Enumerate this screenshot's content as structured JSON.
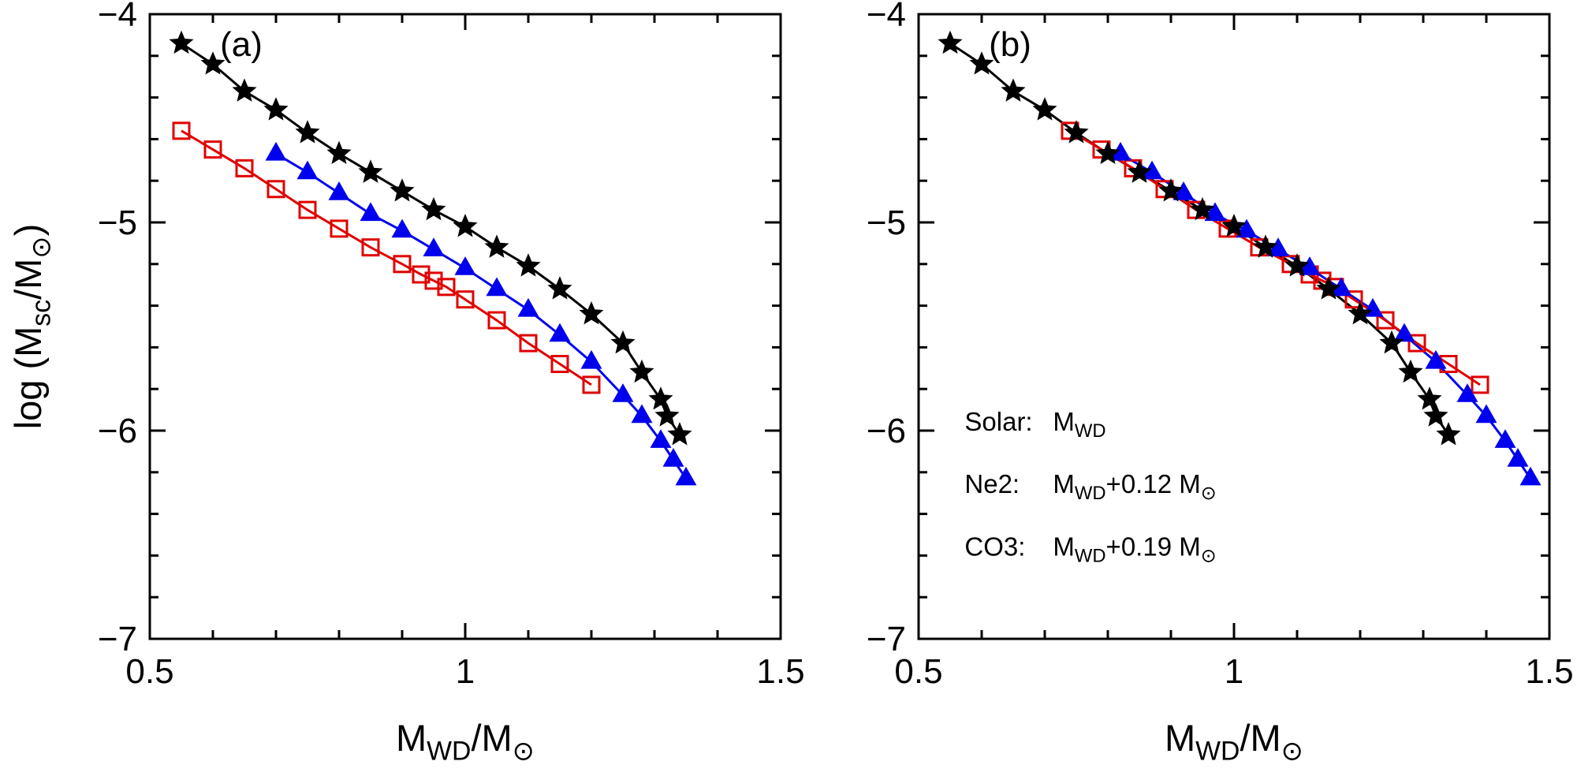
{
  "figure": {
    "background": "#ffffff",
    "panel_labels": [
      "(a)",
      "(b)"
    ]
  },
  "chart_data": [
    {
      "type": "line",
      "panel_label": "(a)",
      "xlim": [
        0.5,
        1.5
      ],
      "ylim": [
        -7,
        -4
      ],
      "grid": false,
      "x_ticks": {
        "major": [
          0.5,
          1,
          1.5
        ],
        "labels": [
          "0.5",
          "1",
          "1.5"
        ],
        "minor_step": 0.1
      },
      "y_ticks": {
        "major": [
          -4,
          -5,
          -6,
          -7
        ],
        "labels": [
          "−4",
          "−5",
          "−6",
          "−7"
        ],
        "minor_step": 0.2
      },
      "xlabel_segments": [
        {
          "t": "M"
        },
        {
          "t": "WD",
          "sub": true
        },
        {
          "t": "/M"
        },
        {
          "t": "⊙",
          "sub": true
        }
      ],
      "ylabel_segments": [
        {
          "t": "log (M"
        },
        {
          "t": "sc",
          "sub": true
        },
        {
          "t": "/M"
        },
        {
          "t": "⊙",
          "sub": true
        },
        {
          "t": ")"
        }
      ],
      "series": [
        {
          "name": "Solar",
          "marker": "star",
          "color": "#000000",
          "x": [
            0.55,
            0.6,
            0.65,
            0.7,
            0.75,
            0.8,
            0.85,
            0.9,
            0.95,
            1.0,
            1.05,
            1.1,
            1.15,
            1.2,
            1.25,
            1.28,
            1.31,
            1.32,
            1.34
          ],
          "y": [
            -4.14,
            -4.24,
            -4.37,
            -4.46,
            -4.57,
            -4.67,
            -4.76,
            -4.85,
            -4.94,
            -5.02,
            -5.12,
            -5.21,
            -5.32,
            -5.44,
            -5.58,
            -5.72,
            -5.85,
            -5.93,
            -6.02
          ]
        },
        {
          "name": "Ne2",
          "marker": "triangle",
          "color": "#0000ee",
          "x": [
            0.7,
            0.75,
            0.8,
            0.85,
            0.9,
            0.95,
            1.0,
            1.05,
            1.1,
            1.15,
            1.2,
            1.25,
            1.28,
            1.31,
            1.33,
            1.35
          ],
          "y": [
            -4.67,
            -4.76,
            -4.86,
            -4.96,
            -5.04,
            -5.13,
            -5.22,
            -5.32,
            -5.42,
            -5.54,
            -5.67,
            -5.83,
            -5.93,
            -6.05,
            -6.14,
            -6.23
          ]
        },
        {
          "name": "CO3",
          "marker": "square-open",
          "color": "#e00000",
          "x": [
            0.55,
            0.6,
            0.65,
            0.7,
            0.75,
            0.8,
            0.85,
            0.9,
            0.93,
            0.95,
            0.97,
            1.0,
            1.05,
            1.1,
            1.15,
            1.2
          ],
          "y": [
            -4.56,
            -4.65,
            -4.74,
            -4.84,
            -4.94,
            -5.03,
            -5.12,
            -5.2,
            -5.25,
            -5.28,
            -5.31,
            -5.37,
            -5.47,
            -5.58,
            -5.68,
            -5.78
          ]
        }
      ]
    },
    {
      "type": "line",
      "panel_label": "(b)",
      "xlim": [
        0.5,
        1.5
      ],
      "ylim": [
        -7,
        -4
      ],
      "grid": false,
      "x_ticks": {
        "major": [
          0.5,
          1,
          1.5
        ],
        "labels": [
          "0.5",
          "1",
          "1.5"
        ],
        "minor_step": 0.1
      },
      "y_ticks": {
        "major": [
          -4,
          -5,
          -6,
          -7
        ],
        "labels": [
          "−4",
          "−5",
          "−6",
          "−7"
        ],
        "minor_step": 0.2
      },
      "xlabel_segments": [
        {
          "t": "M"
        },
        {
          "t": "WD",
          "sub": true
        },
        {
          "t": "/M"
        },
        {
          "t": "⊙",
          "sub": true
        }
      ],
      "legend": {
        "entries": [
          {
            "label": "Solar:",
            "value_segments": [
              {
                "t": "M"
              },
              {
                "t": "WD",
                "sub": true
              }
            ]
          },
          {
            "label": "Ne2:",
            "value_segments": [
              {
                "t": "M"
              },
              {
                "t": "WD",
                "sub": true
              },
              {
                "t": "+0.12 M"
              },
              {
                "t": "⊙",
                "sub": true
              }
            ]
          },
          {
            "label": "CO3:",
            "value_segments": [
              {
                "t": "M"
              },
              {
                "t": "WD",
                "sub": true
              },
              {
                "t": "+0.19 M"
              },
              {
                "t": "⊙",
                "sub": true
              }
            ]
          }
        ]
      },
      "series": [
        {
          "name": "Solar",
          "marker": "star",
          "color": "#000000",
          "x": [
            0.55,
            0.6,
            0.65,
            0.7,
            0.75,
            0.8,
            0.85,
            0.9,
            0.95,
            1.0,
            1.05,
            1.1,
            1.15,
            1.2,
            1.25,
            1.28,
            1.31,
            1.32,
            1.34
          ],
          "y": [
            -4.14,
            -4.24,
            -4.37,
            -4.46,
            -4.57,
            -4.67,
            -4.76,
            -4.85,
            -4.94,
            -5.02,
            -5.12,
            -5.21,
            -5.32,
            -5.44,
            -5.58,
            -5.72,
            -5.85,
            -5.93,
            -6.02
          ]
        },
        {
          "name": "Ne2",
          "marker": "triangle",
          "color": "#0000ee",
          "x": [
            0.82,
            0.87,
            0.92,
            0.97,
            1.02,
            1.07,
            1.12,
            1.17,
            1.22,
            1.27,
            1.32,
            1.37,
            1.4,
            1.43,
            1.45,
            1.47
          ],
          "y": [
            -4.67,
            -4.76,
            -4.86,
            -4.96,
            -5.04,
            -5.13,
            -5.22,
            -5.32,
            -5.42,
            -5.54,
            -5.67,
            -5.83,
            -5.93,
            -6.05,
            -6.14,
            -6.23
          ]
        },
        {
          "name": "CO3",
          "marker": "square-open",
          "color": "#e00000",
          "x": [
            0.74,
            0.79,
            0.84,
            0.89,
            0.94,
            0.99,
            1.04,
            1.09,
            1.12,
            1.14,
            1.16,
            1.19,
            1.24,
            1.29,
            1.34,
            1.39
          ],
          "y": [
            -4.56,
            -4.65,
            -4.74,
            -4.84,
            -4.94,
            -5.03,
            -5.12,
            -5.2,
            -5.25,
            -5.28,
            -5.31,
            -5.37,
            -5.47,
            -5.58,
            -5.68,
            -5.78
          ]
        }
      ]
    }
  ]
}
